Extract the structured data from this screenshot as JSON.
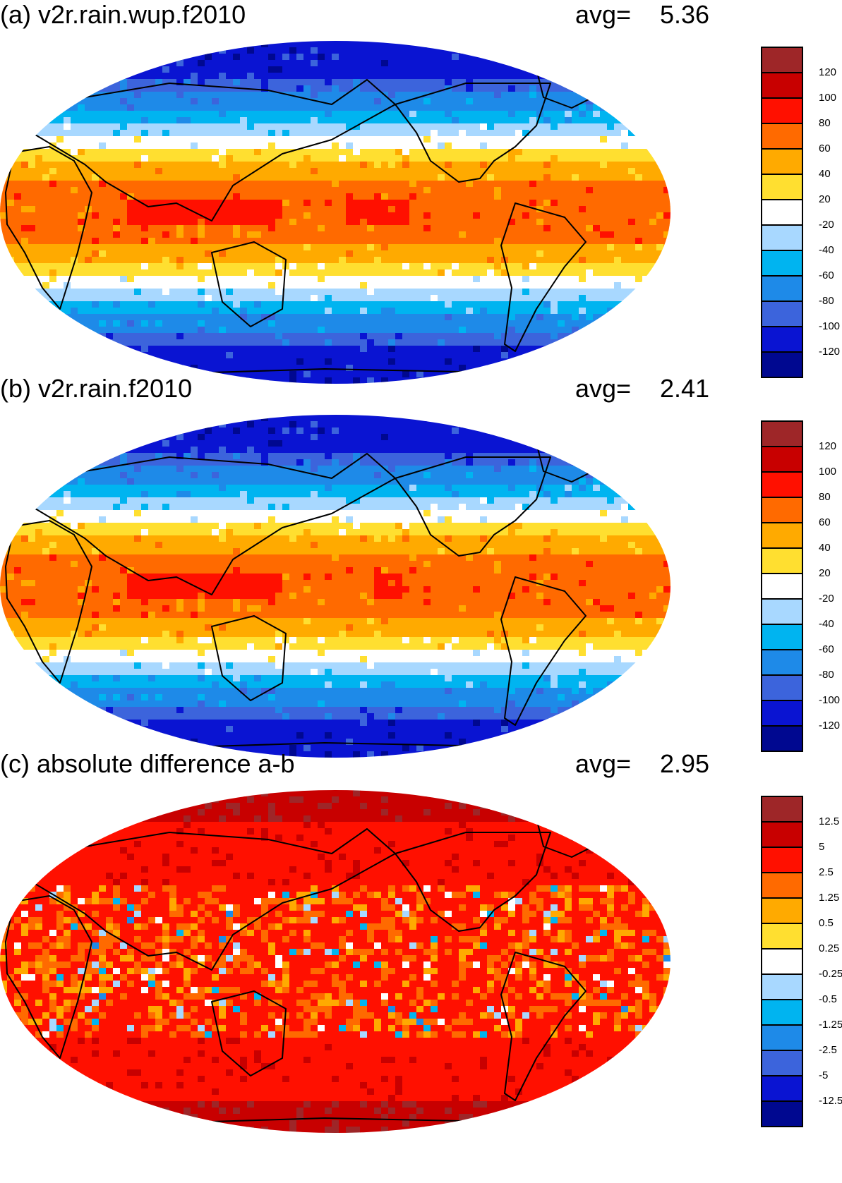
{
  "panels": [
    {
      "title": "(a) v2r.rain.wup.f2010",
      "avg_label": "avg=",
      "avg_value": "5.36",
      "colorbar_labels": [
        "120",
        "100",
        "80",
        "60",
        "40",
        "20",
        "-20",
        "-40",
        "-60",
        "-80",
        "-100",
        "-120"
      ],
      "pattern": "wup"
    },
    {
      "title": "(b) v2r.rain.f2010",
      "avg_label": "avg=",
      "avg_value": "2.41",
      "colorbar_labels": [
        "120",
        "100",
        "80",
        "60",
        "40",
        "20",
        "-20",
        "-40",
        "-60",
        "-80",
        "-100",
        "-120"
      ],
      "pattern": "base"
    },
    {
      "title": "(c) absolute difference a-b",
      "avg_label": "avg=",
      "avg_value": "2.95",
      "colorbar_labels": [
        "12.5",
        "5",
        "2.5",
        "1.25",
        "0.5",
        "0.25",
        "-0.25",
        "-0.5",
        "-1.25",
        "-2.5",
        "-5",
        "-12.5"
      ],
      "pattern": "diff"
    }
  ],
  "colorbar_colors": [
    "#9e2628",
    "#c80000",
    "#ff1000",
    "#ff6a00",
    "#ffaa00",
    "#ffdf30",
    "#ffffff",
    "#a8d8ff",
    "#00b4f0",
    "#1e8ae8",
    "#3c64dc",
    "#0a14d2",
    "#000890"
  ],
  "coastline_color": "#000000"
}
